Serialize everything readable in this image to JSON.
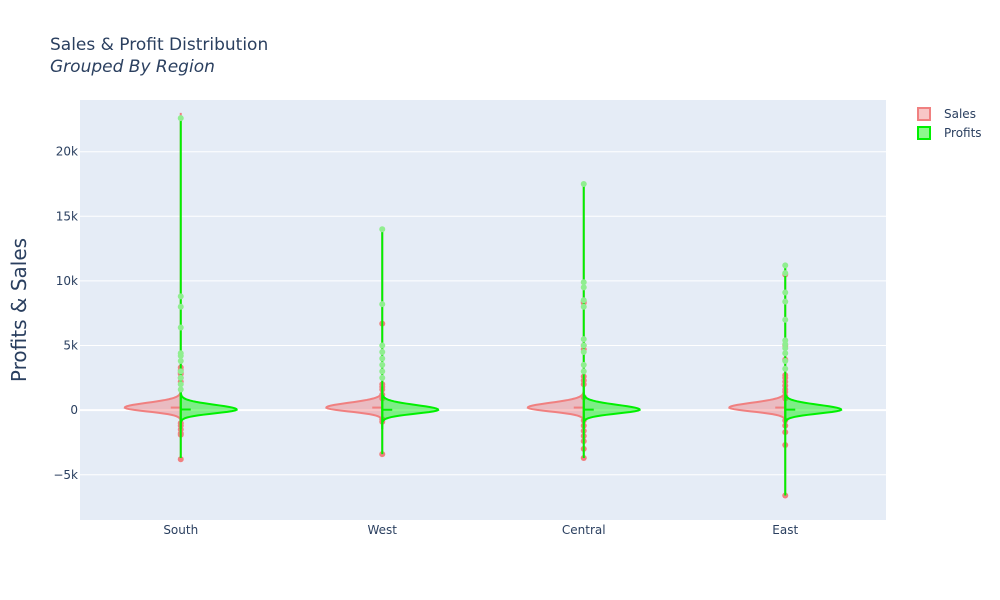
{
  "chart_data": {
    "type": "violin",
    "title": "Sales & Profit Distribution",
    "subtitle": "Grouped By Region",
    "ylabel": "Profits & Sales",
    "xlabel": "",
    "categories": [
      "South",
      "West",
      "Central",
      "East"
    ],
    "ylim": [
      -8500,
      24000
    ],
    "yticks": [
      -5000,
      0,
      5000,
      10000,
      15000,
      20000
    ],
    "ytick_labels": [
      "−5k",
      "0",
      "5k",
      "10k",
      "15k",
      "20k"
    ],
    "grid": true,
    "legend": "top-right",
    "series": [
      {
        "name": "Sales",
        "color": "#f08080",
        "side": "negative",
        "stats": [
          {
            "min": -3800,
            "max": 23000,
            "median": 200
          },
          {
            "min": -3400,
            "max": 14000,
            "median": 200
          },
          {
            "min": -3700,
            "max": 17600,
            "median": 200
          },
          {
            "min": -6600,
            "max": 11200,
            "median": 200
          }
        ],
        "outliers": [
          [
            3300,
            3100,
            2900,
            2800,
            2500,
            2200,
            -1000,
            -1200,
            -1500,
            -1800,
            -1900,
            -3800
          ],
          [
            6700,
            2000,
            1800,
            1600,
            1200,
            900,
            -700,
            -900,
            -3400
          ],
          [
            8400,
            8300,
            5000,
            4700,
            2600,
            2300,
            2000,
            1000,
            -800,
            -1200,
            -1600,
            -2000,
            -2400,
            -3000,
            -3700
          ],
          [
            10500,
            5000,
            3900,
            2700,
            2500,
            2200,
            1900,
            1600,
            1400,
            1100,
            900,
            -800,
            -1200,
            -1700,
            -2700,
            -6600
          ]
        ]
      },
      {
        "name": "Profits",
        "color": "#00f000",
        "side": "positive",
        "stats": [
          {
            "min": -3700,
            "max": 22600,
            "median": 50
          },
          {
            "min": -3400,
            "max": 14000,
            "median": 30
          },
          {
            "min": -3700,
            "max": 17500,
            "median": 40
          },
          {
            "min": -6600,
            "max": 11200,
            "median": 40
          }
        ],
        "outliers": [
          [
            22600,
            8800,
            8000,
            6400,
            4400,
            4200,
            3800,
            3000,
            2500,
            2000,
            1600
          ],
          [
            14000,
            8200,
            5000,
            4500,
            4000,
            3500,
            3000,
            2500
          ],
          [
            17500,
            9900,
            9500,
            8500,
            8000,
            5500,
            5000,
            4500,
            3500,
            3000
          ],
          [
            11200,
            10600,
            9100,
            8400,
            7000,
            5400,
            5100,
            4800,
            4400,
            3800,
            3200
          ]
        ]
      }
    ]
  }
}
